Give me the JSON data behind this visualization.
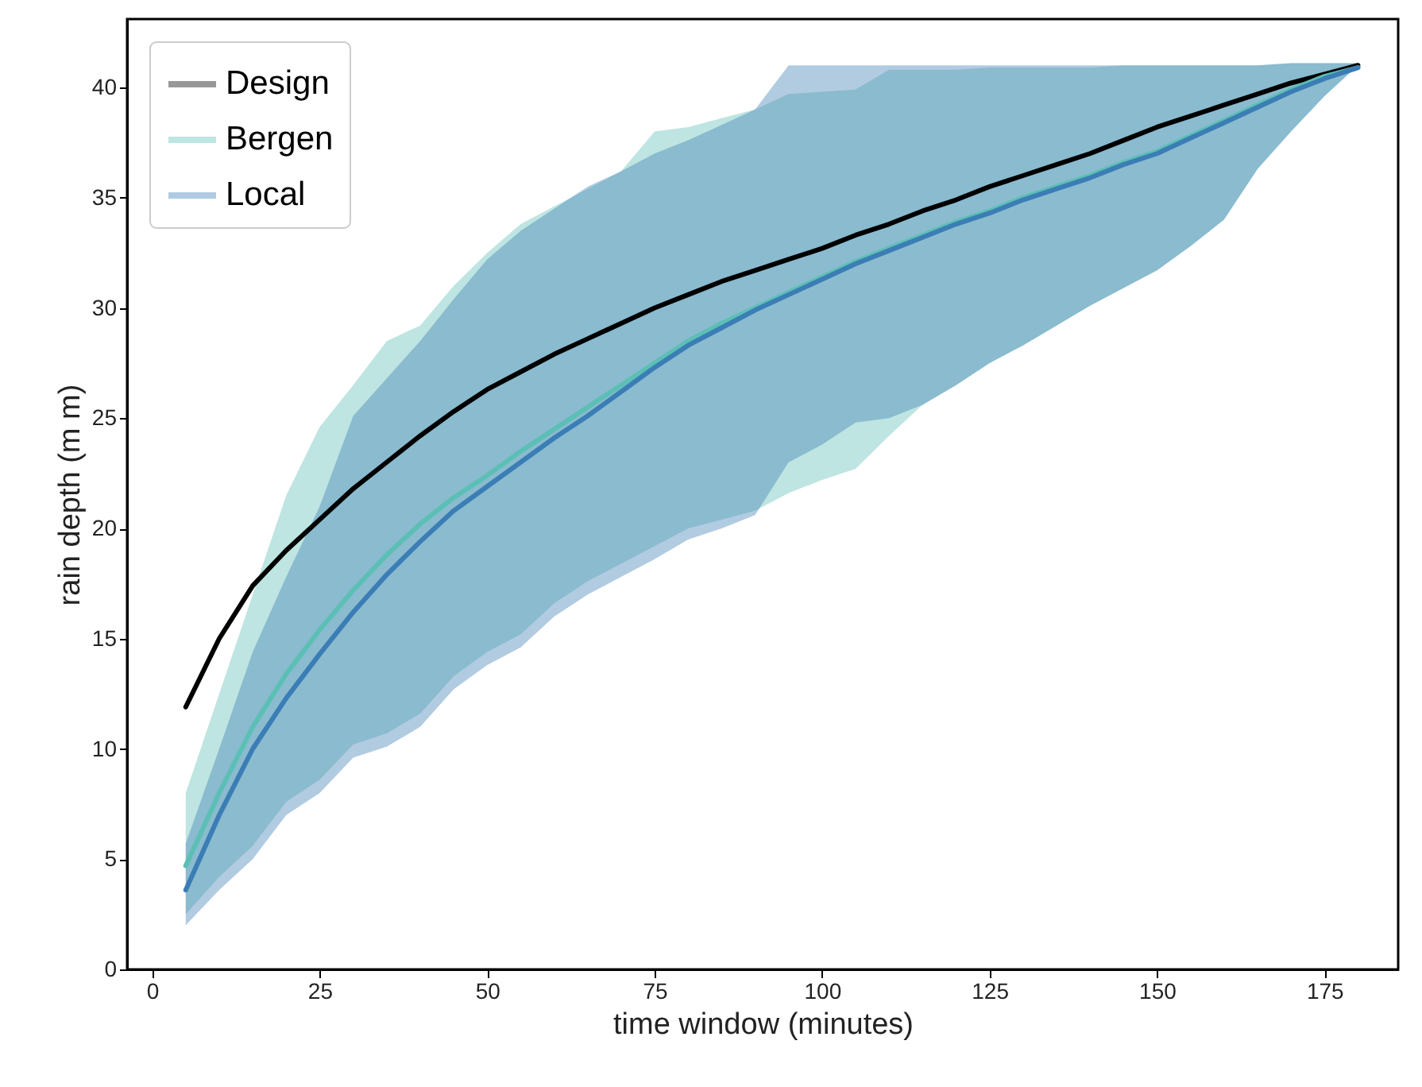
{
  "chart_data": {
    "type": "line",
    "xlabel": "time window (minutes)",
    "ylabel": "rain depth (m m)",
    "legend": "top left",
    "grid": false,
    "marker": "none",
    "line_style": "solid",
    "x": [
      5,
      10,
      15,
      20,
      25,
      30,
      35,
      40,
      45,
      50,
      55,
      60,
      65,
      70,
      75,
      80,
      85,
      90,
      95,
      100,
      105,
      110,
      115,
      120,
      125,
      130,
      135,
      140,
      145,
      150,
      155,
      160,
      165,
      170,
      175,
      180
    ],
    "xlim": [
      -3.75,
      186
    ],
    "ylim": [
      0,
      43.1
    ],
    "xticks": [
      0,
      25,
      50,
      75,
      100,
      125,
      150,
      175
    ],
    "yticks": [
      0,
      5,
      10,
      15,
      20,
      25,
      30,
      35,
      40
    ],
    "series": [
      {
        "name": "Design",
        "color": "#000000",
        "values": [
          11.9,
          15.0,
          17.4,
          19.0,
          20.4,
          21.8,
          23.0,
          24.2,
          25.3,
          26.3,
          27.1,
          27.9,
          28.6,
          29.3,
          30.0,
          30.6,
          31.2,
          31.7,
          32.2,
          32.7,
          33.3,
          33.8,
          34.4,
          34.9,
          35.5,
          36.0,
          36.5,
          37.0,
          37.6,
          38.2,
          38.7,
          39.2,
          39.7,
          40.2,
          40.6,
          41.0
        ]
      },
      {
        "name": "Bergen",
        "color": "#5cbfb5",
        "values": [
          4.7,
          8.0,
          11.0,
          13.4,
          15.4,
          17.2,
          18.8,
          20.2,
          21.4,
          22.4,
          23.5,
          24.5,
          25.5,
          26.5,
          27.5,
          28.5,
          29.3,
          30.0,
          30.7,
          31.4,
          32.1,
          32.7,
          33.3,
          33.9,
          34.4,
          35.0,
          35.5,
          36.0,
          36.6,
          37.1,
          37.8,
          38.5,
          39.2,
          39.9,
          40.5,
          40.9
        ],
        "lower": [
          2.5,
          4.2,
          5.6,
          7.6,
          8.6,
          10.2,
          10.7,
          11.6,
          13.3,
          14.4,
          15.2,
          16.6,
          17.6,
          18.4,
          19.2,
          20.0,
          20.4,
          20.8,
          21.6,
          22.2,
          22.7,
          24.2,
          25.6,
          26.5,
          27.5,
          28.3,
          29.2,
          30.1,
          30.9,
          31.7,
          32.8,
          34.0,
          36.3,
          38.0,
          39.6,
          41.0
        ],
        "upper": [
          8.0,
          12.5,
          17.0,
          21.5,
          24.6,
          26.5,
          28.5,
          29.2,
          31.0,
          32.5,
          33.8,
          34.6,
          35.4,
          36.2,
          38.0,
          38.2,
          38.6,
          39.0,
          39.7,
          39.8,
          39.9,
          40.8,
          40.8,
          40.8,
          40.9,
          40.9,
          40.9,
          40.9,
          41.0,
          41.0,
          41.0,
          41.0,
          41.0,
          41.1,
          41.1,
          41.1
        ]
      },
      {
        "name": "Local",
        "color": "#3b7db5",
        "values": [
          3.6,
          7.0,
          10.0,
          12.3,
          14.3,
          16.2,
          17.9,
          19.4,
          20.8,
          21.9,
          23.0,
          24.1,
          25.1,
          26.2,
          27.3,
          28.3,
          29.1,
          29.9,
          30.6,
          31.3,
          32.0,
          32.6,
          33.2,
          33.8,
          34.3,
          34.9,
          35.4,
          35.9,
          36.5,
          37.0,
          37.7,
          38.4,
          39.1,
          39.8,
          40.4,
          40.9
        ],
        "lower": [
          2.0,
          3.6,
          5.0,
          7.0,
          8.0,
          9.6,
          10.1,
          11.0,
          12.7,
          13.8,
          14.6,
          16.0,
          17.0,
          17.8,
          18.6,
          19.5,
          20.0,
          20.6,
          23.0,
          23.8,
          24.8,
          25.0,
          25.6,
          26.5,
          27.5,
          28.3,
          29.2,
          30.1,
          30.9,
          31.7,
          32.8,
          34.0,
          36.3,
          38.0,
          39.6,
          41.0
        ],
        "upper": [
          5.7,
          10.0,
          14.4,
          17.8,
          21.0,
          25.1,
          26.8,
          28.5,
          30.4,
          32.2,
          33.5,
          34.5,
          35.5,
          36.2,
          37.0,
          37.6,
          38.3,
          39.0,
          41.0,
          41.0,
          41.0,
          41.0,
          41.0,
          41.0,
          41.0,
          41.0,
          41.0,
          41.0,
          41.0,
          41.0,
          41.0,
          41.0,
          41.0,
          41.1,
          41.1,
          41.1
        ]
      }
    ]
  }
}
